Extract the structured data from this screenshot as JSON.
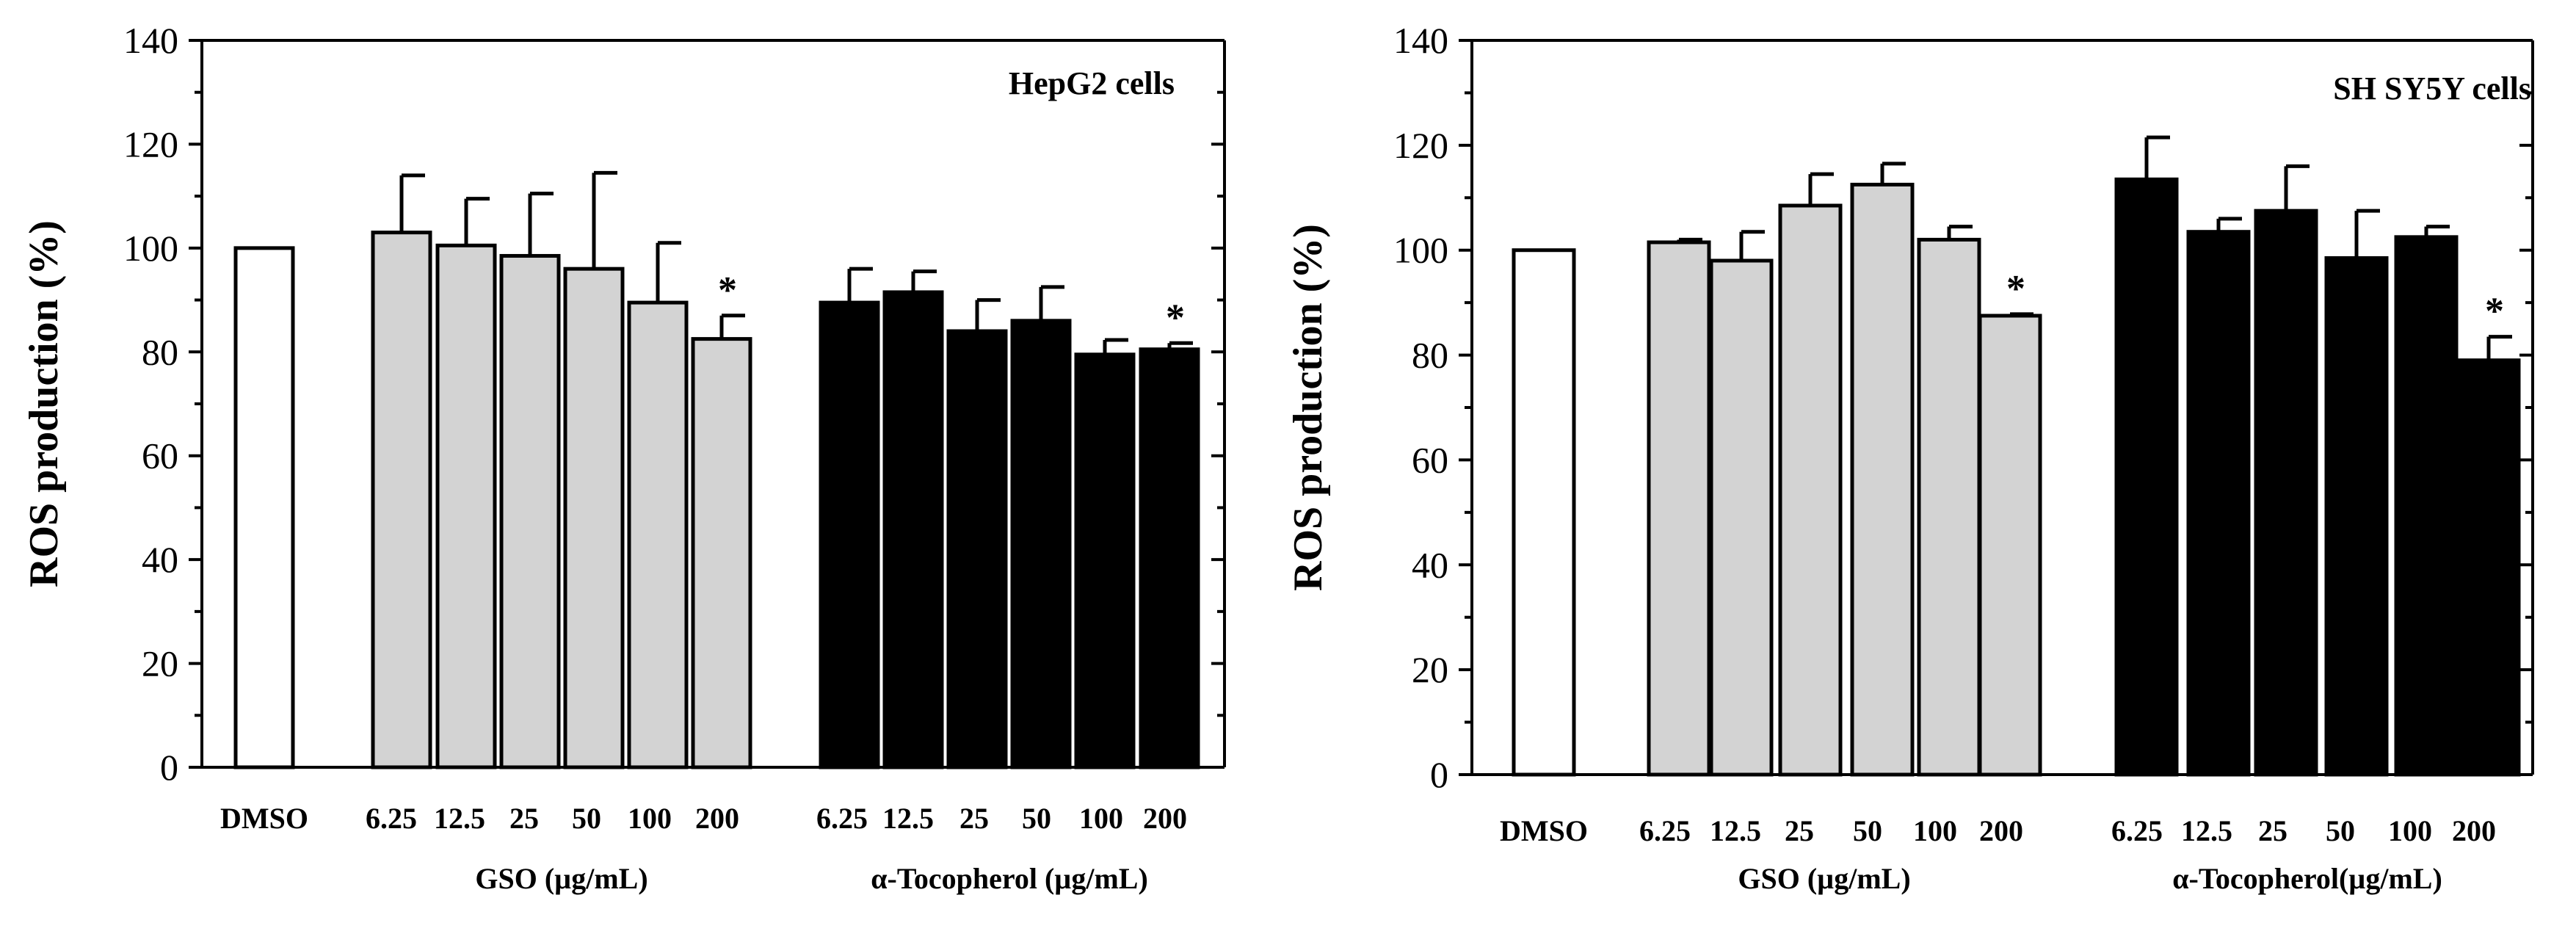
{
  "chart_data": [
    {
      "type": "bar",
      "title": "HepG2 cells",
      "ylabel": "ROS production (%)",
      "ylim": [
        0,
        140
      ],
      "yticks": [
        0,
        20,
        40,
        60,
        80,
        100,
        120,
        140
      ],
      "groups": [
        {
          "label": "",
          "color": "#ffffff",
          "categories": [
            "DMSO"
          ],
          "values": [
            100
          ],
          "errors": [
            0
          ],
          "stars": [
            ""
          ]
        },
        {
          "label": "GSO (µg/mL)",
          "color": "#d3d3d3",
          "categories": [
            "6.25",
            "12.5",
            "25",
            "50",
            "100",
            "200"
          ],
          "values": [
            103,
            100.5,
            98.5,
            96,
            89.5,
            82.5
          ],
          "errors": [
            11,
            9,
            12,
            18.5,
            11.5,
            4.5
          ],
          "stars": [
            "",
            "",
            "",
            "",
            "",
            "*"
          ]
        },
        {
          "label": "α-Tocopherol (µg/mL)",
          "color": "#000000",
          "categories": [
            "6.25",
            "12.5",
            "25",
            "50",
            "100",
            "200"
          ],
          "values": [
            89.5,
            91.5,
            84,
            86,
            79.5,
            80.5
          ],
          "errors": [
            6.5,
            4,
            6,
            6.5,
            2.8,
            1.2
          ],
          "stars": [
            "",
            "",
            "",
            "",
            "",
            "*"
          ]
        }
      ]
    },
    {
      "type": "bar",
      "title": "SH SY5Y cells",
      "ylabel": "ROS production (%)",
      "ylim": [
        0,
        140
      ],
      "yticks": [
        0,
        20,
        40,
        60,
        80,
        100,
        120,
        140
      ],
      "groups": [
        {
          "label": "",
          "color": "#ffffff",
          "categories": [
            "DMSO"
          ],
          "values": [
            100
          ],
          "errors": [
            0
          ],
          "stars": [
            ""
          ]
        },
        {
          "label": "GSO (µg/mL)",
          "color": "#d3d3d3",
          "categories": [
            "6.25",
            "12.5",
            "25",
            "50",
            "100",
            "200"
          ],
          "values": [
            101.5,
            98,
            108.5,
            112.5,
            102,
            87.5
          ],
          "errors": [
            0.5,
            5.5,
            6,
            4,
            2.5,
            0.3
          ],
          "stars": [
            "",
            "",
            "",
            "",
            "",
            "*"
          ]
        },
        {
          "label": "α-Tocopherol(µg/mL)",
          "color": "#000000",
          "categories": [
            "6.25",
            "12.5",
            "25",
            "50",
            "100",
            "200"
          ],
          "values": [
            113.5,
            103.5,
            107.5,
            98.5,
            102.5,
            79
          ],
          "errors": [
            8,
            2.5,
            8.5,
            9,
            2,
            4.5
          ],
          "stars": [
            "",
            "",
            "",
            "",
            "",
            "*"
          ]
        }
      ]
    }
  ]
}
